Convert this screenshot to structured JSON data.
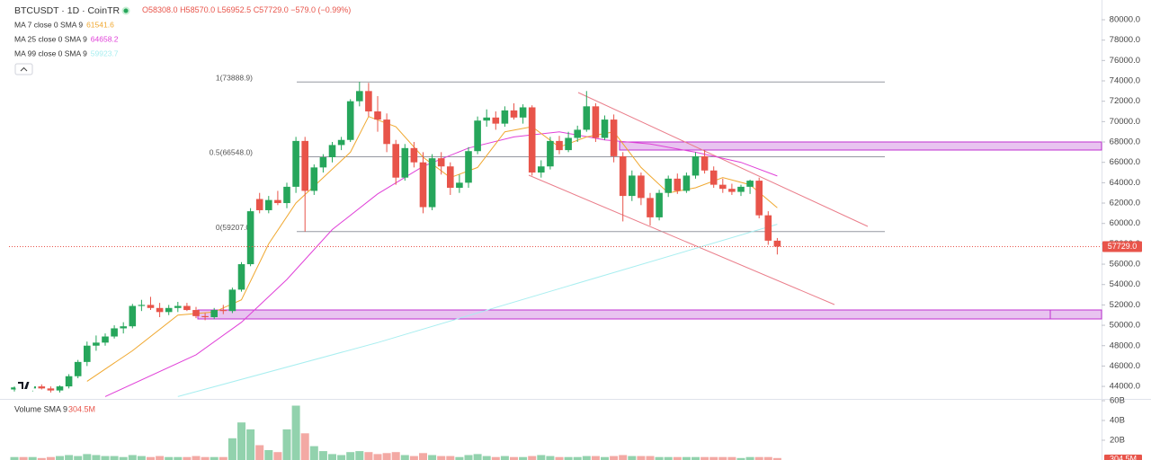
{
  "chart_data": {
    "type": "candlestick",
    "title": "BTCUSDT · 1D · CoinTR",
    "ohlc_header": {
      "open": "O58308.0",
      "high": "H58570.0",
      "low": "L56952.5",
      "close": "C57729.0",
      "change": "−579.0 (−0.99%)"
    },
    "up_color": "#26a65b",
    "down_color": "#e8544a",
    "series": {
      "open": [
        43700,
        43900,
        43800,
        44000,
        43800,
        43600,
        44000,
        45000,
        46400,
        48000,
        48300,
        48900,
        49700,
        49900,
        51900,
        52000,
        51700,
        51300,
        51700,
        51900,
        51500,
        50900,
        50800,
        51500,
        51400,
        53500,
        56000,
        62400,
        61300,
        62300,
        62000,
        63600,
        68100,
        63200,
        65500,
        66500,
        67700,
        68200,
        72000,
        73000,
        71000,
        70200,
        67800,
        64500,
        67400,
        66000,
        61600,
        66400,
        65600,
        63500,
        64000,
        67100,
        70100,
        70400,
        69800,
        71100,
        70400,
        71400,
        65000,
        65600,
        68100,
        67200,
        68400,
        69200,
        71500,
        68400,
        70200,
        66600,
        62700,
        64700,
        62500,
        60600,
        63000,
        64400,
        63200,
        64700,
        66600,
        65200,
        63800,
        63400,
        63100,
        63600,
        64200,
        60800,
        58308
      ],
      "high": [
        44000,
        44200,
        44100,
        44200,
        44000,
        44100,
        45200,
        46600,
        48400,
        49000,
        49200,
        50000,
        50300,
        52100,
        52500,
        52800,
        52200,
        52000,
        52300,
        52200,
        51800,
        51200,
        51700,
        52000,
        53700,
        56200,
        61500,
        63000,
        62700,
        63200,
        64000,
        68500,
        68500,
        65800,
        66800,
        68000,
        68500,
        72200,
        73900,
        73800,
        72500,
        70800,
        68200,
        67800,
        68000,
        67000,
        66800,
        67000,
        66000,
        64800,
        67500,
        70500,
        71200,
        71000,
        71500,
        71800,
        71700,
        71600,
        66200,
        68500,
        68600,
        69000,
        69600,
        73000,
        71800,
        70600,
        70700,
        67000,
        65200,
        65000,
        63000,
        63300,
        64700,
        64900,
        65000,
        67000,
        67200,
        65600,
        64400,
        63900,
        63800,
        64300,
        64500,
        61200,
        58570
      ],
      "low": [
        43500,
        43600,
        43500,
        43700,
        43400,
        43400,
        43800,
        44800,
        46000,
        47500,
        48000,
        48700,
        49200,
        49700,
        51400,
        51500,
        50800,
        51000,
        51300,
        51400,
        50700,
        50500,
        50600,
        51100,
        51200,
        53300,
        55800,
        61000,
        61000,
        61800,
        61500,
        63000,
        59200,
        62800,
        65000,
        66000,
        67200,
        68000,
        71500,
        70500,
        69000,
        67000,
        63800,
        64200,
        65500,
        61000,
        61300,
        64800,
        62800,
        63000,
        63500,
        66800,
        69500,
        69200,
        69500,
        70200,
        69800,
        64700,
        64500,
        65300,
        66800,
        67000,
        68000,
        69000,
        68000,
        68200,
        66000,
        60200,
        62200,
        61800,
        59800,
        60300,
        62600,
        62900,
        63000,
        64400,
        64900,
        63500,
        63000,
        62800,
        62700,
        62900,
        60500,
        57900,
        56952.5
      ],
      "close": [
        43900,
        43800,
        44000,
        43800,
        43600,
        44000,
        45000,
        46400,
        48000,
        48300,
        48900,
        49700,
        49900,
        51900,
        52000,
        51700,
        51300,
        51700,
        51900,
        51500,
        50900,
        50800,
        51500,
        51400,
        53500,
        56000,
        61200,
        61300,
        62300,
        62000,
        63600,
        68100,
        63200,
        65500,
        66500,
        67700,
        68200,
        72000,
        73000,
        71000,
        70200,
        67800,
        64500,
        67400,
        66000,
        61600,
        66400,
        65600,
        63500,
        64000,
        67100,
        70100,
        70400,
        69800,
        71100,
        70400,
        71400,
        65000,
        65600,
        68100,
        67200,
        68400,
        69200,
        71500,
        68400,
        70200,
        66600,
        62700,
        64700,
        62500,
        60600,
        63000,
        64400,
        63200,
        64700,
        66600,
        65200,
        63800,
        63400,
        63100,
        63600,
        64200,
        60800,
        58308,
        57729
      ]
    },
    "last_price_label": "57729.0",
    "ylim": [
      42860,
      81940
    ],
    "yticks": [
      {
        "value": 44000,
        "label": "44000.0"
      },
      {
        "value": 46000,
        "label": "46000.0"
      },
      {
        "value": 48000,
        "label": "48000.0"
      },
      {
        "value": 50000,
        "label": "50000.0"
      },
      {
        "value": 52000,
        "label": "52000.0"
      },
      {
        "value": 54000,
        "label": "54000.0"
      },
      {
        "value": 56000,
        "label": "56000.0"
      },
      {
        "value": 58000,
        "label": "58000.0"
      },
      {
        "value": 60000,
        "label": "60000.0"
      },
      {
        "value": 62000,
        "label": "62000.0"
      },
      {
        "value": 64000,
        "label": "64000.0"
      },
      {
        "value": 66000,
        "label": "66000.0"
      },
      {
        "value": 68000,
        "label": "68000.0"
      },
      {
        "value": 70000,
        "label": "70000.0"
      },
      {
        "value": 72000,
        "label": "72000.0"
      },
      {
        "value": 74000,
        "label": "74000.0"
      },
      {
        "value": 76000,
        "label": "76000.0"
      },
      {
        "value": 78000,
        "label": "78000.0"
      },
      {
        "value": 80000,
        "label": "80000.0"
      }
    ],
    "ma": [
      {
        "name": "MA 7 close 0 SMA 9",
        "color": "#f0a830",
        "last": 61541.6,
        "x": [
          8,
          13,
          18,
          22,
          25,
          28,
          31,
          34,
          37,
          39,
          42,
          45,
          48,
          51,
          54,
          57,
          60,
          63,
          66,
          69,
          72,
          75,
          78,
          81,
          84
        ],
        "values": [
          44500,
          47500,
          51000,
          51300,
          52500,
          58000,
          62000,
          64500,
          67000,
          70500,
          69500,
          66500,
          64500,
          65500,
          69000,
          69500,
          67500,
          68500,
          69000,
          65500,
          63000,
          63500,
          64500,
          63800,
          61541.6
        ]
      },
      {
        "name": "MA 25 close 0 SMA 9",
        "color": "#e040d8",
        "last": 64658.2,
        "x": [
          10,
          20,
          25,
          30,
          35,
          40,
          45,
          50,
          55,
          60,
          65,
          70,
          75,
          80,
          84
        ],
        "values": [
          43000,
          47100,
          50300,
          54500,
          59400,
          62900,
          65600,
          67400,
          68500,
          69000,
          68200,
          67800,
          67000,
          66000,
          64658.2
        ]
      },
      {
        "name": "MA 99 close 0 SMA 9",
        "color": "#a8eef0",
        "last": 59923.7,
        "x": [
          18,
          40,
          60,
          84
        ],
        "values": [
          43000,
          48300,
          53600,
          59923.7
        ]
      }
    ],
    "fib": [
      {
        "label": "1(73888.9)",
        "value": 73888.9
      },
      {
        "label": "0.5(66548.0)",
        "value": 66548
      },
      {
        "label": "0(59207.0)",
        "value": 59207
      }
    ],
    "volume": {
      "label": "Volume SMA 9",
      "sma_label": "304.5M",
      "values": [
        3,
        3,
        3,
        2,
        3,
        4,
        5,
        4,
        6,
        5,
        4,
        4,
        3,
        5,
        4,
        3,
        4,
        3,
        3,
        3,
        4,
        3,
        3,
        3,
        22,
        38,
        31,
        15,
        10,
        8,
        31,
        55,
        27,
        14,
        9,
        6,
        5,
        8,
        9,
        8,
        6,
        7,
        8,
        5,
        4,
        7,
        5,
        4,
        4,
        3,
        5,
        6,
        4,
        3,
        4,
        3,
        3,
        4,
        5,
        4,
        3,
        3,
        3,
        4,
        4,
        3,
        4,
        5,
        4,
        4,
        4,
        3,
        3,
        3,
        3,
        3,
        3,
        3,
        3,
        3,
        2,
        3,
        3,
        3,
        2
      ],
      "ylim": [
        0,
        60
      ],
      "yticks": [
        {
          "value": 20,
          "label": "20B"
        },
        {
          "value": 40,
          "label": "40B"
        },
        {
          "value": 60,
          "label": "60B"
        }
      ]
    }
  }
}
